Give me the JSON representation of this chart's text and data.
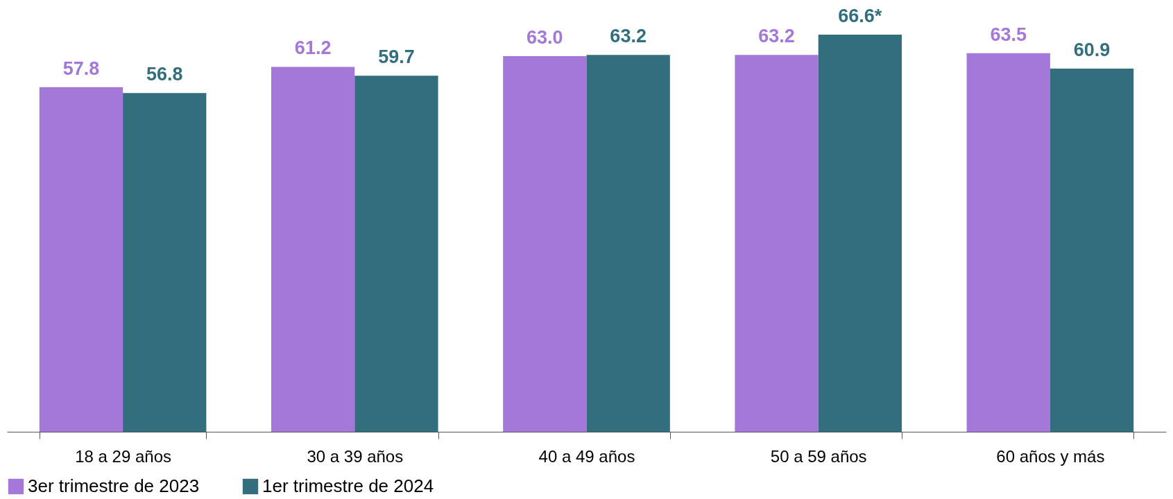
{
  "chart_data": {
    "type": "bar",
    "categories": [
      "18 a 29 años",
      "30 a 39 años",
      "40 a 49 años",
      "50 a 59 años",
      "60 años y más"
    ],
    "series": [
      {
        "name": "3er trimestre de 2023",
        "color": "#a378d8",
        "values": [
          57.8,
          61.2,
          63.0,
          63.2,
          63.5
        ],
        "value_labels": [
          "57.8",
          "61.2",
          "63.0",
          "63.2",
          "63.5"
        ]
      },
      {
        "name": "1er trimestre de 2024",
        "color": "#336e7e",
        "values": [
          56.8,
          59.7,
          63.2,
          66.6,
          60.9
        ],
        "value_labels": [
          "56.8",
          "59.7",
          "63.2",
          "66.6*",
          "60.9"
        ]
      }
    ],
    "legend": "bottom",
    "grid": false
  }
}
